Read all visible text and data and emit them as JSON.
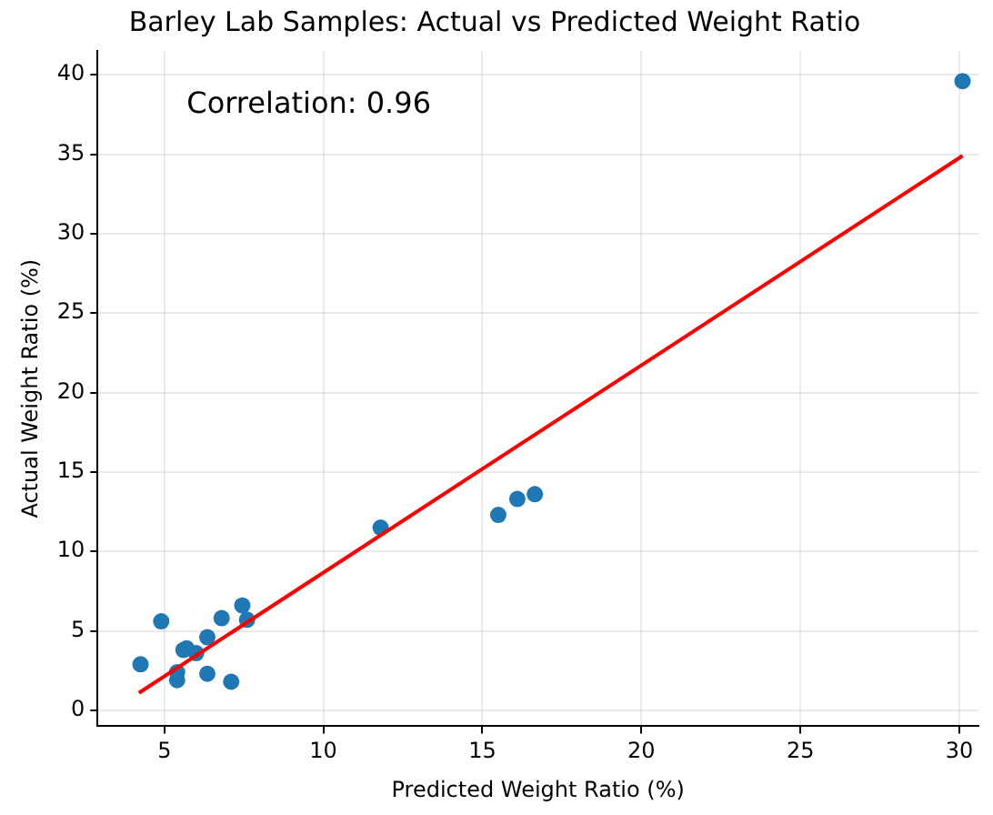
{
  "chart_data": {
    "type": "scatter",
    "title": "Barley Lab Samples: Actual vs Predicted Weight Ratio",
    "xlabel": "Predicted Weight Ratio (%)",
    "ylabel": "Actual Weight Ratio (%)",
    "annotations": [
      "Correlation: 0.96"
    ],
    "series": [
      {
        "type": "scatter",
        "color": "#1f77b4",
        "marker": "circle",
        "x": [
          4.25,
          4.9,
          5.4,
          5.4,
          5.6,
          5.7,
          6.0,
          6.35,
          6.35,
          6.8,
          7.1,
          7.45,
          7.6,
          11.8,
          15.5,
          16.1,
          16.65,
          30.1
        ],
        "values": [
          2.9,
          5.6,
          1.9,
          2.4,
          3.8,
          3.9,
          3.6,
          4.6,
          2.3,
          5.8,
          1.8,
          6.6,
          5.7,
          11.5,
          12.3,
          13.3,
          13.6,
          39.6
        ]
      },
      {
        "type": "line",
        "color": "#ff0000",
        "x": [
          4.2,
          30.1
        ],
        "values": [
          1.1,
          34.9
        ]
      }
    ],
    "xlim": [
      2.9,
      30.6
    ],
    "ylim": [
      -1,
      41.5
    ],
    "xticks": [
      5,
      10,
      15,
      20,
      25,
      30
    ],
    "yticks": [
      0,
      5,
      10,
      15,
      20,
      25,
      30,
      35,
      40
    ],
    "grid": true,
    "legend": false
  }
}
